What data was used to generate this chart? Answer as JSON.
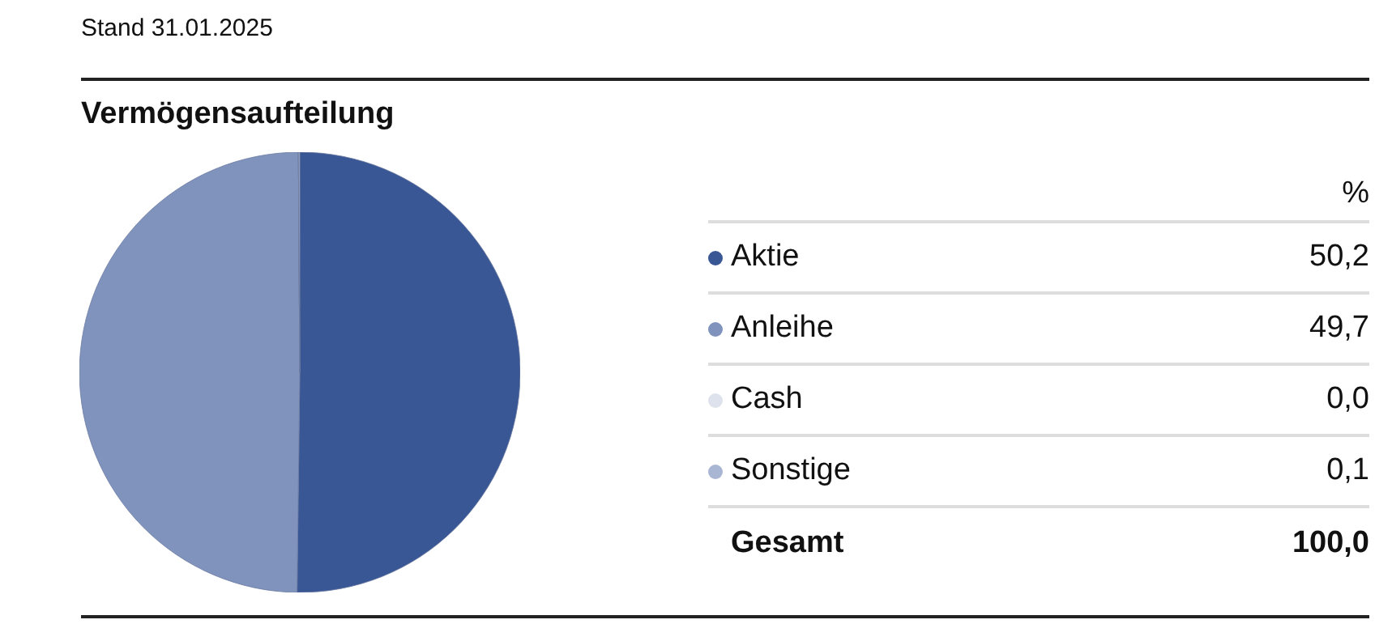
{
  "chart_data": {
    "type": "pie",
    "title": "Vermögensaufteilung",
    "subtitle": "Stand 31.01.2025",
    "categories": [
      "Aktie",
      "Anleihe",
      "Cash",
      "Sonstige"
    ],
    "values": [
      50.2,
      49.7,
      0.0,
      0.1
    ],
    "colors": [
      "#3a5795",
      "#7f93bd",
      "#dde2ec",
      "#a9b6d3"
    ],
    "value_labels": [
      "50,2",
      "49,7",
      "0,0",
      "0,1"
    ],
    "annotations": [
      "%",
      "Gesamt",
      "100,0"
    ],
    "legend": "right"
  }
}
